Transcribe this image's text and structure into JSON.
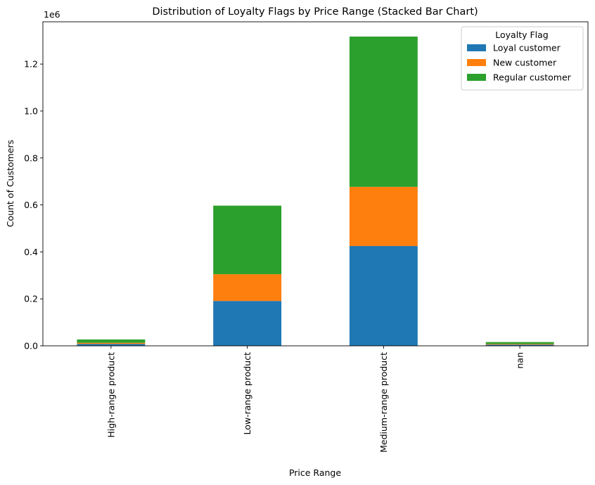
{
  "chart_data": {
    "type": "bar",
    "stacked": true,
    "title": "Distribution of Loyalty Flags by Price Range (Stacked Bar Chart)",
    "xlabel": "Price Range",
    "ylabel": "Count of Customers",
    "y_offset_label": "1e6",
    "y_scale_factor": 1000000,
    "ylim": [
      0,
      1380000
    ],
    "yticks": [
      0,
      200000,
      400000,
      600000,
      800000,
      1000000,
      1200000
    ],
    "ytick_labels": [
      "0.0",
      "0.2",
      "0.4",
      "0.6",
      "0.8",
      "1.0",
      "1.2"
    ],
    "categories": [
      "High-range product",
      "Low-range product",
      "Medium-range product",
      "nan"
    ],
    "series": [
      {
        "name": "Loyal customer",
        "color": "#1f77b4",
        "values": [
          8000,
          191000,
          425000,
          5000
        ]
      },
      {
        "name": "New customer",
        "color": "#ff7f0e",
        "values": [
          5000,
          114000,
          252000,
          3000
        ]
      },
      {
        "name": "Regular customer",
        "color": "#2ca02c",
        "values": [
          14000,
          292000,
          640000,
          8000
        ]
      }
    ],
    "legend": {
      "title": "Loyalty Flag",
      "position": "upper right"
    },
    "grid": false
  }
}
